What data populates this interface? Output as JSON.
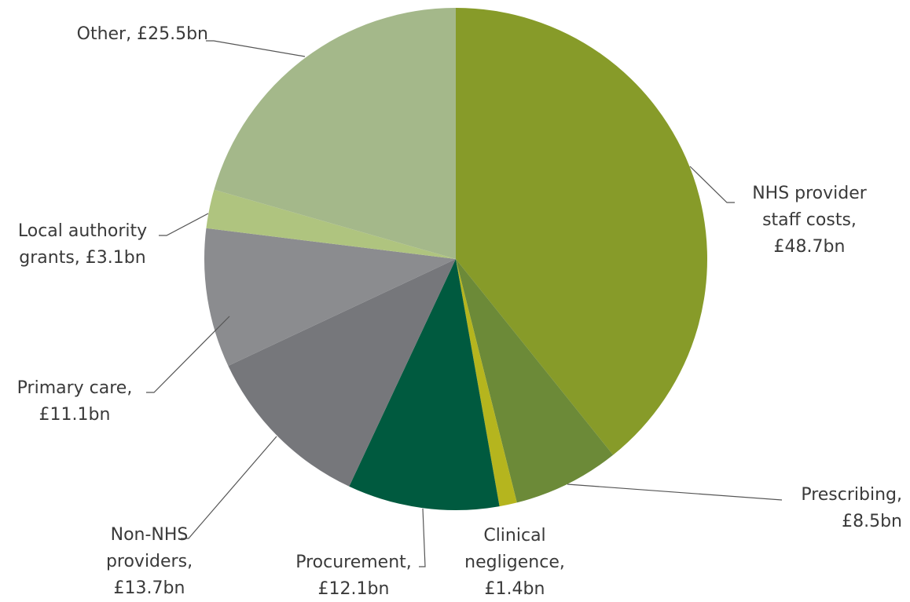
{
  "chart_data": {
    "type": "pie",
    "categories": [
      "NHS provider staff costs,",
      "Prescribing,",
      "Clinical negligence,",
      "Procurement,",
      "Non-NHS providers,",
      "Primary care,",
      "Local authority grants,",
      "Other,"
    ],
    "values": [
      48.7,
      8.5,
      1.4,
      12.1,
      13.7,
      11.1,
      3.1,
      25.5
    ],
    "value_labels": [
      "£48.7bn",
      "£8.5bn",
      "£1.4bn",
      "£12.1bn",
      "£13.7bn",
      "£11.1bn",
      "£3.1bn",
      "£25.5bn"
    ],
    "colors": [
      "#879b29",
      "#6c8a38",
      "#b5b51e",
      "#005a3f",
      "#76777b",
      "#8b8c8f",
      "#afc47f",
      "#a4b88a"
    ]
  }
}
